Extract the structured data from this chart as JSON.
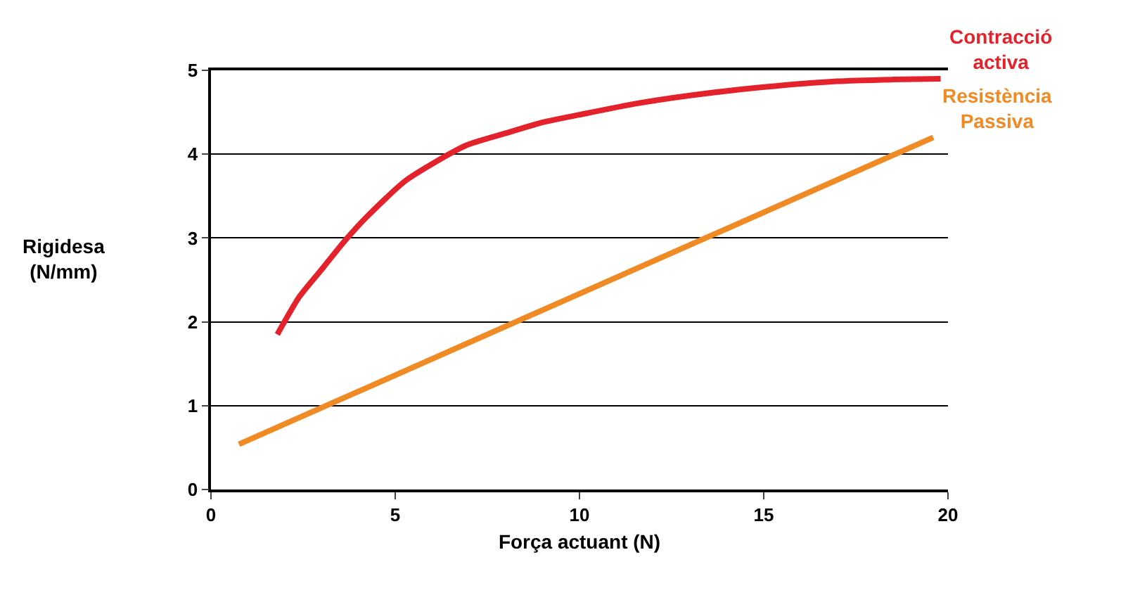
{
  "chart_data": {
    "type": "line",
    "xlabel": "Força actuant (N)",
    "ylabel": "Rigidesa\n(N/mm)",
    "xlim": [
      0,
      20
    ],
    "xticks": [
      0,
      5,
      10,
      15,
      20
    ],
    "ylim": [
      0,
      5
    ],
    "yticks": [
      0,
      1,
      2,
      3,
      4,
      5
    ],
    "grid": "y",
    "legend": false,
    "marker": "none",
    "line_style": "solid",
    "series": [
      {
        "name": "Contracció\nactiva",
        "color": "#e3222b",
        "x": [
          1.8,
          2.4,
          3.05,
          3.6,
          4.2,
          5.3,
          6.9,
          8,
          9,
          10,
          11.5,
          13,
          15,
          17,
          18.5,
          19.8
        ],
        "values": [
          1.85,
          2.3,
          2.65,
          2.95,
          3.24,
          3.69,
          4.1,
          4.25,
          4.38,
          4.47,
          4.6,
          4.7,
          4.8,
          4.87,
          4.89,
          4.9
        ]
      },
      {
        "name": "Resistència\nPassiva",
        "color": "#f08a24",
        "x": [
          0.76,
          19.6
        ],
        "values": [
          0.54,
          4.2
        ]
      }
    ]
  }
}
